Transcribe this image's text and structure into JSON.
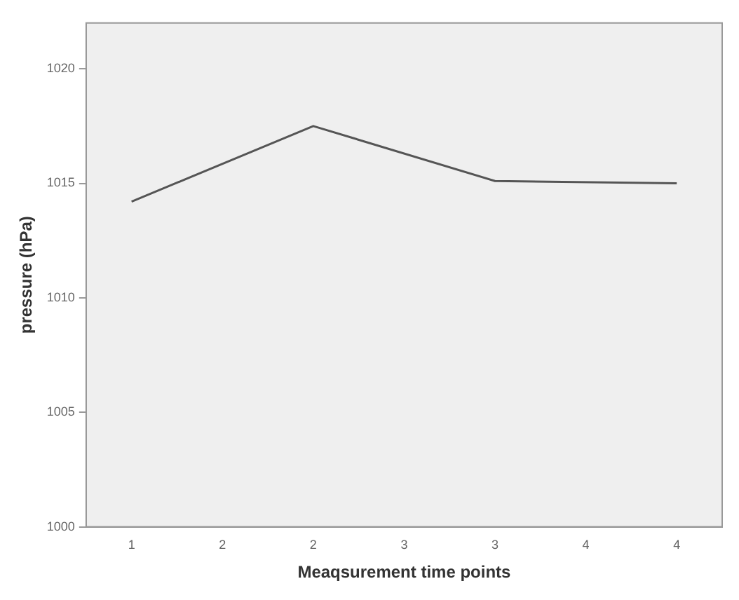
{
  "chart_data": {
    "type": "line",
    "xlabel": "Meaqsurement time points",
    "ylabel": "pressure (hPa)",
    "categories": [
      "1",
      "2",
      "2",
      "3",
      "3",
      "4",
      "4"
    ],
    "series": [
      {
        "color": "#555555",
        "values": [
          1014.2,
          null,
          1017.5,
          null,
          1015.1,
          null,
          1015.0
        ]
      }
    ],
    "ylim": [
      1000,
      1022
    ],
    "yticks": [
      1000,
      1005,
      1010,
      1015,
      1020
    ],
    "grid": false,
    "legend": false,
    "marker": "none",
    "line_style": "solid"
  }
}
